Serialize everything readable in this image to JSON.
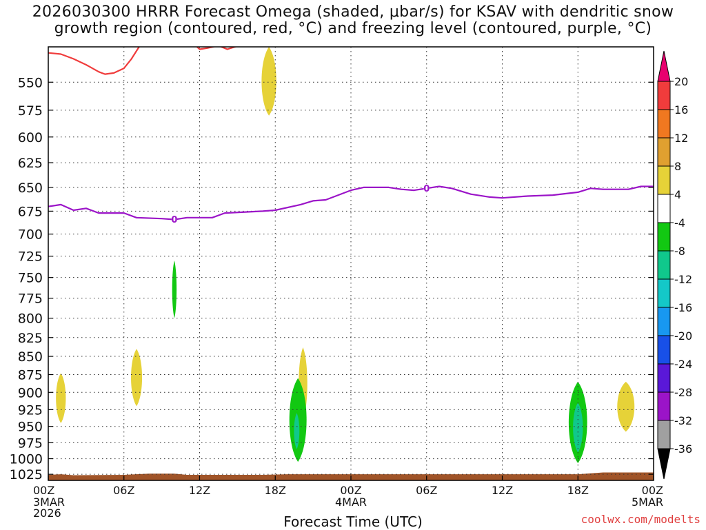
{
  "title_line1": "2026030300 HRRR Forecast Omega (shaded, μbar/s) for KSAV with dendritic snow",
  "title_line2": "growth region (contoured, red, °C) and freezing level (contoured, purple, °C)",
  "credit": "coolwx.com/modelts",
  "chart_data": {
    "type": "heatmap",
    "xlabel": "Forecast Time (UTC)",
    "x_range_hours": [
      0,
      48
    ],
    "x_ticks": [
      {
        "h": 0,
        "label": "00Z",
        "sub": [
          "3MAR",
          "2026"
        ]
      },
      {
        "h": 6,
        "label": "06Z",
        "sub": []
      },
      {
        "h": 12,
        "label": "12Z",
        "sub": []
      },
      {
        "h": 18,
        "label": "18Z",
        "sub": []
      },
      {
        "h": 24,
        "label": "00Z",
        "sub": [
          "4MAR"
        ]
      },
      {
        "h": 30,
        "label": "06Z",
        "sub": []
      },
      {
        "h": 36,
        "label": "12Z",
        "sub": []
      },
      {
        "h": 42,
        "label": "18Z",
        "sub": []
      },
      {
        "h": 48,
        "label": "00Z",
        "sub": [
          "5MAR"
        ]
      }
    ],
    "y_scale": "log-pressure",
    "y_range_mb": [
      520,
      1035
    ],
    "y_ticks": [
      550,
      575,
      600,
      625,
      650,
      675,
      700,
      725,
      750,
      775,
      800,
      825,
      850,
      875,
      900,
      925,
      950,
      975,
      1000,
      1025
    ],
    "grid": true,
    "colorbar": {
      "levels": [
        "20",
        "16",
        "12",
        "8",
        "4",
        "-4",
        "-8",
        "-12",
        "-16",
        "-20",
        "-24",
        "-28",
        "-32",
        "-36"
      ],
      "colors": [
        "#e8006e",
        "#f03c3c",
        "#f07820",
        "#e0a030",
        "#e6d238",
        "#ffffff",
        "#12c812",
        "#10c88c",
        "#14c8c8",
        "#1898f0",
        "#1850e8",
        "#5a18d8",
        "#9b14c8",
        "#a0a0a0",
        "#000000"
      ]
    },
    "omega_regions": [
      {
        "value": "4 to 8",
        "color": "#e6d238",
        "hour": 17.5,
        "p_top": 520,
        "p_bottom": 580,
        "hw": 0.6
      },
      {
        "value": "-4 to -8",
        "color": "#12c812",
        "hour": 10.0,
        "p_top": 730,
        "p_bottom": 800,
        "hw": 0.18
      },
      {
        "value": "4 to 8",
        "color": "#e6d238",
        "hour": 1.0,
        "p_top": 873,
        "p_bottom": 945,
        "hw": 0.4
      },
      {
        "value": "4 to 8",
        "color": "#e6d238",
        "hour": 7.0,
        "p_top": 840,
        "p_bottom": 920,
        "hw": 0.45
      },
      {
        "value": "4 to 8",
        "color": "#e6d238",
        "hour": 20.2,
        "p_top": 838,
        "p_bottom": 940,
        "hw": 0.35
      },
      {
        "value": "-4 to -8",
        "color": "#12c812",
        "hour": 19.8,
        "p_top": 880,
        "p_bottom": 1005,
        "hw": 0.7
      },
      {
        "value": "-8 to -12",
        "color": "#10c88c",
        "hour": 19.7,
        "p_top": 930,
        "p_bottom": 985,
        "hw": 0.22
      },
      {
        "value": "-4 to -8",
        "color": "#12c812",
        "hour": 42.0,
        "p_top": 885,
        "p_bottom": 1007,
        "hw": 0.75
      },
      {
        "value": "-8 to -12",
        "color": "#10c88c",
        "hour": 42.0,
        "p_top": 915,
        "p_bottom": 990,
        "hw": 0.4
      },
      {
        "value": "4 to 8",
        "color": "#e6d238",
        "hour": 45.8,
        "p_top": 885,
        "p_bottom": 958,
        "hw": 0.7
      }
    ],
    "series": [
      {
        "color": "#f03c3c",
        "points_hours_mb": [
          [
            0,
            525
          ],
          [
            1,
            526
          ],
          [
            2,
            530
          ],
          [
            3,
            535
          ],
          [
            4,
            541
          ],
          [
            4.5,
            543
          ],
          [
            5.2,
            542
          ],
          [
            6,
            538
          ],
          [
            6.6,
            530
          ],
          [
            7.2,
            520
          ]
        ]
      },
      {
        "color": "#f03c3c",
        "points_hours_mb": [
          [
            11.8,
            520
          ],
          [
            12,
            522
          ],
          [
            12.6,
            521
          ],
          [
            13.5,
            519
          ],
          [
            14.2,
            522
          ],
          [
            14.8,
            520
          ],
          [
            15.5,
            518
          ]
        ]
      },
      {
        "color": "#9b14c8",
        "contour_label": "0",
        "points_hours_mb": [
          [
            0,
            670
          ],
          [
            1,
            668
          ],
          [
            2,
            674
          ],
          [
            3,
            672
          ],
          [
            4,
            677
          ],
          [
            6,
            677
          ],
          [
            7,
            682
          ],
          [
            9,
            683
          ],
          [
            10,
            684
          ],
          [
            11,
            682
          ],
          [
            13,
            682
          ],
          [
            14,
            677
          ],
          [
            17,
            675
          ],
          [
            18,
            674
          ],
          [
            20,
            668
          ],
          [
            21,
            664
          ],
          [
            22,
            663
          ],
          [
            24,
            653
          ],
          [
            25,
            650
          ],
          [
            27,
            650
          ],
          [
            28,
            652
          ],
          [
            29,
            653
          ],
          [
            31,
            649
          ],
          [
            32,
            651
          ],
          [
            33.5,
            657
          ],
          [
            35,
            660
          ],
          [
            36,
            661
          ],
          [
            38,
            659
          ],
          [
            40,
            658
          ],
          [
            42,
            655
          ],
          [
            43,
            651
          ],
          [
            44,
            652
          ],
          [
            46,
            652
          ],
          [
            47,
            649
          ],
          [
            48,
            649
          ]
        ]
      }
    ],
    "surface_color": "#a05428",
    "surface_mb": [
      [
        0,
        1026
      ],
      [
        1,
        1025
      ],
      [
        2,
        1026.5
      ],
      [
        6,
        1026
      ],
      [
        8,
        1024
      ],
      [
        10,
        1024
      ],
      [
        11,
        1026
      ],
      [
        17,
        1026
      ],
      [
        19,
        1025
      ],
      [
        24,
        1025
      ],
      [
        42,
        1025
      ],
      [
        44,
        1022
      ],
      [
        48,
        1022
      ]
    ]
  }
}
